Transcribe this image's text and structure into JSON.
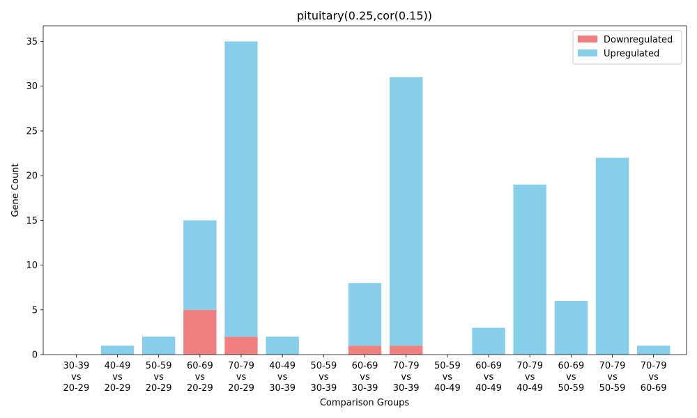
{
  "chart_data": {
    "type": "bar",
    "stacked": true,
    "title": "pituitary(0.25,cor(0.15))",
    "xlabel": "Comparison Groups",
    "ylabel": "Gene Count",
    "ylim": [
      0,
      36.75
    ],
    "yticks": [
      0,
      5,
      10,
      15,
      20,
      25,
      30,
      35
    ],
    "grid": false,
    "legend_position": "top-right",
    "categories": [
      [
        "30-39",
        "vs",
        "20-29"
      ],
      [
        "40-49",
        "vs",
        "20-29"
      ],
      [
        "50-59",
        "vs",
        "20-29"
      ],
      [
        "60-69",
        "vs",
        "20-29"
      ],
      [
        "70-79",
        "vs",
        "20-29"
      ],
      [
        "40-49",
        "vs",
        "30-39"
      ],
      [
        "50-59",
        "vs",
        "30-39"
      ],
      [
        "60-69",
        "vs",
        "30-39"
      ],
      [
        "70-79",
        "vs",
        "30-39"
      ],
      [
        "50-59",
        "vs",
        "40-49"
      ],
      [
        "60-69",
        "vs",
        "40-49"
      ],
      [
        "70-79",
        "vs",
        "40-49"
      ],
      [
        "60-69",
        "vs",
        "50-59"
      ],
      [
        "70-79",
        "vs",
        "50-59"
      ],
      [
        "70-79",
        "vs",
        "60-69"
      ]
    ],
    "series": [
      {
        "name": "Downregulated",
        "color": "#f08080",
        "values": [
          0,
          0,
          0,
          5,
          2,
          0,
          0,
          1,
          1,
          0,
          0,
          0,
          0,
          0,
          0
        ]
      },
      {
        "name": "Upregulated",
        "color": "#87ceeb",
        "values": [
          0,
          1,
          2,
          10,
          33,
          2,
          0,
          7,
          30,
          0,
          3,
          19,
          6,
          22,
          1
        ]
      }
    ]
  }
}
